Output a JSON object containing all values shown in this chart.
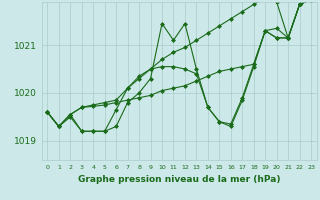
{
  "xlabel": "Graphe pression niveau de la mer (hPa)",
  "background_color": "#cce8e8",
  "grid_color": "#aacccc",
  "line_color": "#1a6b1a",
  "marker": "D",
  "marker_size": 2,
  "line_width": 0.8,
  "xlim": [
    -0.5,
    23.5
  ],
  "ylim": [
    1018.6,
    1021.9
  ],
  "yticks": [
    1019,
    1020,
    1021
  ],
  "xticks": [
    0,
    1,
    2,
    3,
    4,
    5,
    6,
    7,
    8,
    9,
    10,
    11,
    12,
    13,
    14,
    15,
    16,
    17,
    18,
    19,
    20,
    21,
    22,
    23
  ],
  "series": [
    [
      1019.6,
      1019.3,
      1019.5,
      1019.2,
      1019.2,
      1019.2,
      1019.3,
      1019.8,
      1020.0,
      1020.3,
      1021.45,
      1021.1,
      1021.45,
      1020.5,
      1019.7,
      1019.4,
      1019.35,
      1019.9,
      1020.6,
      1021.3,
      1021.15,
      1021.15,
      1021.85,
      1021.95
    ],
    [
      1019.6,
      1019.3,
      1019.55,
      1019.7,
      1019.75,
      1019.8,
      1019.85,
      1020.1,
      1020.3,
      1020.5,
      1020.7,
      1020.85,
      1020.95,
      1021.1,
      1021.25,
      1021.4,
      1021.55,
      1021.7,
      1021.85,
      1022.0,
      1021.9,
      1021.15,
      1021.85,
      1021.95
    ],
    [
      1019.6,
      1019.3,
      1019.55,
      1019.7,
      1019.72,
      1019.75,
      1019.8,
      1019.85,
      1019.9,
      1019.95,
      1020.05,
      1020.1,
      1020.15,
      1020.25,
      1020.35,
      1020.45,
      1020.5,
      1020.55,
      1020.6,
      1021.3,
      1021.35,
      1021.15,
      1021.85,
      1021.95
    ],
    [
      1019.6,
      1019.3,
      1019.55,
      1019.2,
      1019.2,
      1019.2,
      1019.65,
      1020.1,
      1020.35,
      1020.5,
      1020.55,
      1020.55,
      1020.5,
      1020.4,
      1019.7,
      1019.4,
      1019.3,
      1019.85,
      1020.55,
      1021.3,
      1021.15,
      1021.15,
      1021.85,
      1021.95
    ]
  ]
}
